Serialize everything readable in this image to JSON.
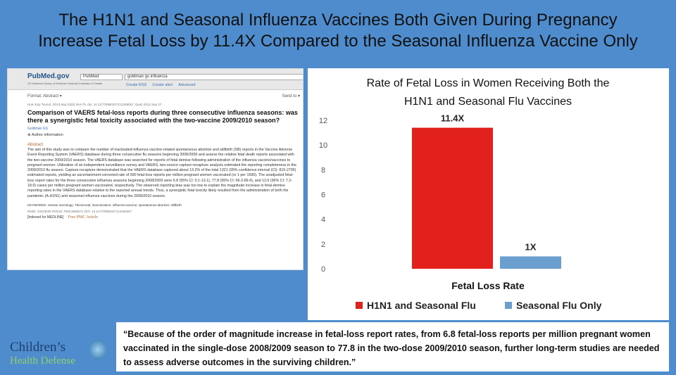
{
  "title": {
    "line1": "The H1N1 and Seasonal Influenza Vaccines Both Given During Pregnancy",
    "line2": "Increase Fetal Loss by 11.4X Compared to the Seasonal Influenza Vaccine Only"
  },
  "pubmed": {
    "logo": "PubMed.gov",
    "logo_sub": "US National Library of Medicine National Institutes of Health",
    "db_select": "PubMed",
    "search_value": "goldman gs influenza",
    "links": [
      "Create RSS",
      "Create alert",
      "Advanced"
    ],
    "format": "Format: Abstract ▾",
    "send_to": "Send to ▾",
    "citation": "Hum Exp Toxicol. 2013 May;32(5):464-75. doi: 10.1177/0960327112455067. Epub 2012 Sep 27.",
    "article_title": "Comparison of VAERS fetal-loss reports during three consecutive influenza seasons: was there a synergistic fetal toxicity associated with the two-vaccine 2009/2010 season?",
    "author": "Goldman GS",
    "author_info": "⊕ Author information",
    "abstract_heading": "Abstract",
    "abstract": "The aim of this study was to compare the number of inactivated-influenza vaccine-related spontaneous abortion and stillbirth (SB) reports in the Vaccine Adverse Event Reporting System (VAERS) database during three consecutive flu seasons beginning 2008/2009 and assess the relative fetal death reports associated with the two-vaccine 2009/2010 season. The VAERS database was searched for reports of fetal demise following administration of the influenza vaccine/vaccines to pregnant women. Utilization of an independent surveillance survey and VAERS, two-source capture-recapture analysis estimated the reporting completeness in the 2009/2010 flu season. Capture-recapture demonstrated that the VAERS database captured about 13.2% of the total 1321 (95% confidence interval (CI): 815-2795) estimated reports, yielding an ascertainment-corrected rate of 590 fetal-loss reports per million pregnant women vaccinated (or 1 per 1695). The unadjusted fetal-loss report rates for the three consecutive influenza seasons beginning 2008/2009 were 6.8 (95% CI: 0.1-13.1), 77.8 (95% CI: 66.3-89.4), and 12.6 (95% CI: 7.2-18.0) cases per million pregnant women vaccinated, respectively. The observed reporting bias was too low to explain the magnitude increase in fetal-demise reporting rates in the VAERS database relative to the reported annual trends. Thus, a synergistic fetal toxicity likely resulted from the administration of both the pandemic (A-H1N1) and seasonal influenza vaccines during the 2009/2010 season.",
    "keywords": "KEYWORDS: Human toxicology; Thimerosal; immunization; influenza vaccine; spontaneous abortion; stillbirth",
    "ids": "PMID: 23023030   PMCID: PMC3660071   DOI: 10.1177/0960327112455067",
    "indexed": "[Indexed for MEDLINE]",
    "free_pmc": "Free PMC Article"
  },
  "chart_data": {
    "type": "bar",
    "title": "Rate of Fetal Loss in Women Receiving Both the H1N1 and Seasonal Flu Vaccines",
    "title_line1": "Rate of Fetal Loss in Women Receiving Both the",
    "title_line2": "H1N1 and Seasonal Flu Vaccines",
    "xlabel": "Fetal Loss Rate",
    "ylim": [
      0,
      12
    ],
    "yticks": [
      "0",
      "2",
      "4",
      "6",
      "8",
      "10",
      "12"
    ],
    "grid": false,
    "legend_position": "bottom",
    "series": [
      {
        "name": "H1N1 and Seasonal Flu",
        "value": 11.4,
        "label": "11.4X",
        "color": "#e3211c"
      },
      {
        "name": "Seasonal Flu Only",
        "value": 1,
        "label": "1X",
        "color": "#6a9fd0"
      }
    ]
  },
  "quote": "“Because of the order of magnitude increase in fetal-loss report rates, from 6.8 fetal-loss reports per million pregnant women vaccinated in the single-dose 2008/2009 season to 77.8 in the two-dose 2009/2010 season, further long-term studies are needed to assess adverse outcomes in the surviving children.”",
  "logo": {
    "line1": "Children’s",
    "line2": "Health Defense"
  }
}
